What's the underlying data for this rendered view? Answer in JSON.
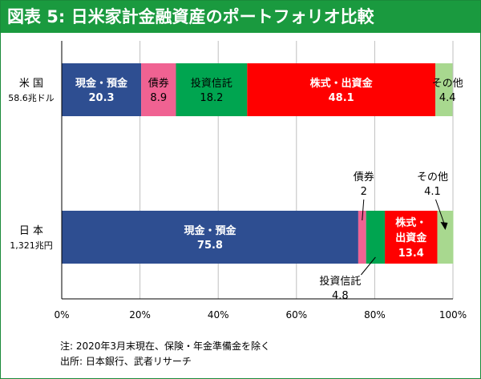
{
  "title": "図表 5: 日米家計金融資産のポートフォリオ比較",
  "notes": {
    "note": "注: 2020年3月末現在、保険・年金準備金を除く",
    "source": "出所: 日本銀行、武者リサーチ"
  },
  "colors": {
    "header": "#1a9a3f",
    "cash": "#2e4e91",
    "bonds": "#f06292",
    "trusts": "#00a550",
    "equity": "#ff0000",
    "other": "#a8d88f",
    "axis": "#000000",
    "grid": "#bfbfbf"
  },
  "chart_data": {
    "type": "bar",
    "orientation": "horizontal",
    "stacked": "percent",
    "title": "図表 5: 日米家計金融資産のポートフォリオ比較",
    "xlim": [
      0,
      100
    ],
    "xticks": [
      "0%",
      "20%",
      "40%",
      "60%",
      "80%",
      "100%"
    ],
    "grid": true,
    "categories": [
      {
        "name": "米 国",
        "sub": "58.6兆ドル"
      },
      {
        "name": "日 本",
        "sub": "1,321兆円"
      }
    ],
    "series": [
      {
        "key": "cash",
        "name": "現金・預金",
        "values": [
          20.3,
          75.8
        ]
      },
      {
        "key": "bonds",
        "name": "債券",
        "values": [
          8.9,
          2.0
        ]
      },
      {
        "key": "trusts",
        "name": "投資信託",
        "values": [
          18.2,
          4.8
        ]
      },
      {
        "key": "equity",
        "name": "株式・出資金",
        "values": [
          48.1,
          13.4
        ]
      },
      {
        "key": "other",
        "name": "その他",
        "values": [
          4.4,
          4.1
        ]
      }
    ]
  }
}
